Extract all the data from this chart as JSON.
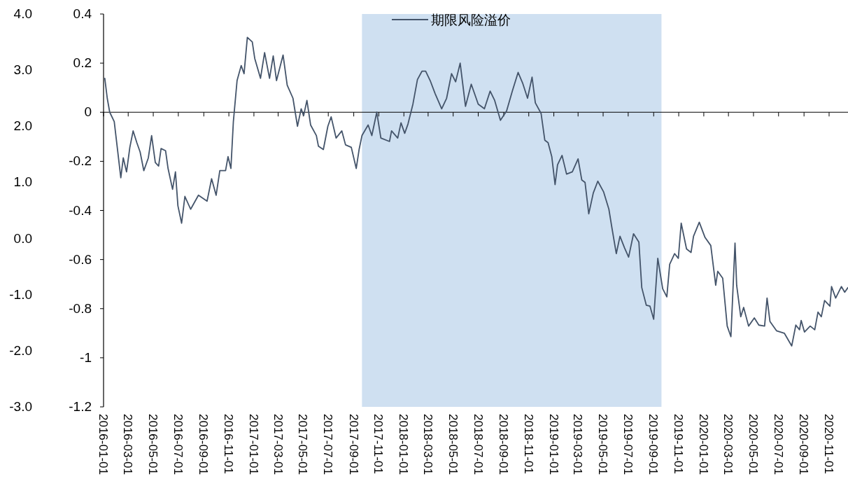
{
  "chart_data": {
    "type": "line",
    "legend": "top",
    "xlim": [
      "2016-01-01",
      "2020-12-17"
    ],
    "xticks": [
      "2016-01-01",
      "2016-03-01",
      "2016-05-01",
      "2016-07-01",
      "2016-09-01",
      "2016-11-01",
      "2017-01-01",
      "2017-03-01",
      "2017-05-01",
      "2017-07-01",
      "2017-09-01",
      "2017-11-01",
      "2018-01-01",
      "2018-03-01",
      "2018-05-01",
      "2018-07-01",
      "2018-09-01",
      "2018-11-01",
      "2019-01-01",
      "2019-03-01",
      "2019-05-01",
      "2019-07-01",
      "2019-09-01",
      "2019-11-01",
      "2020-01-01",
      "2020-03-01",
      "2020-05-01",
      "2020-07-01",
      "2020-09-01",
      "2020-11-01"
    ],
    "ylim": [
      -1.2,
      0.4
    ],
    "yticks": [
      {
        "value": -1.2,
        "label": "-1.2"
      },
      -1,
      {
        "value": -0.8,
        "label": "-0.8"
      },
      {
        "value": -0.6,
        "label": "-0.6"
      },
      {
        "value": -0.4,
        "label": "-0.4"
      },
      {
        "value": -0.2,
        "label": "-0.2"
      },
      0,
      0.2,
      0.4
    ],
    "y2lim": [
      -3,
      4
    ],
    "y2ticks": [
      {
        "value": -3,
        "label": "-3.0"
      },
      {
        "value": -2,
        "label": "-2.0"
      },
      {
        "value": -1,
        "label": "-1.0"
      },
      {
        "value": 0,
        "label": "0.0"
      },
      {
        "value": 1,
        "label": "1.0"
      },
      {
        "value": 2,
        "label": "2.0"
      },
      {
        "value": 3,
        "label": "3.0"
      },
      {
        "value": 4,
        "label": "4.0"
      }
    ],
    "bands": [
      {
        "axis": "x",
        "from": "2017-09-21",
        "to": "2019-09-20",
        "color": "#cfe0f1"
      }
    ],
    "series": [
      {
        "name": "期限风险溢价",
        "color": "#44546a",
        "x": [
          "2016-01-04",
          "2016-01-10",
          "2016-01-16",
          "2016-01-27",
          "2016-02-04",
          "2016-02-12",
          "2016-02-18",
          "2016-02-26",
          "2016-03-05",
          "2016-03-13",
          "2016-03-22",
          "2016-03-30",
          "2016-04-08",
          "2016-04-19",
          "2016-04-27",
          "2016-05-06",
          "2016-05-14",
          "2016-05-20",
          "2016-05-31",
          "2016-06-06",
          "2016-06-17",
          "2016-06-24",
          "2016-06-30",
          "2016-07-09",
          "2016-07-17",
          "2016-07-31",
          "2016-08-19",
          "2016-09-09",
          "2016-09-20",
          "2016-10-01",
          "2016-10-10",
          "2016-10-24",
          "2016-10-30",
          "2016-11-06",
          "2016-11-12",
          "2016-11-21",
          "2016-12-01",
          "2016-12-08",
          "2016-12-16",
          "2016-12-28",
          "2017-01-03",
          "2017-01-17",
          "2017-01-27",
          "2017-02-08",
          "2017-02-17",
          "2017-02-25",
          "2017-03-13",
          "2017-03-23",
          "2017-04-06",
          "2017-04-17",
          "2017-04-26",
          "2017-05-02",
          "2017-05-10",
          "2017-05-19",
          "2017-06-02",
          "2017-06-07",
          "2017-06-19",
          "2017-06-30",
          "2017-07-08",
          "2017-07-20",
          "2017-08-03",
          "2017-08-12",
          "2017-08-26",
          "2017-09-07",
          "2017-09-14",
          "2017-09-21",
          "2017-10-06",
          "2017-10-15",
          "2017-10-27",
          "2017-11-06",
          "2017-11-27",
          "2017-12-02",
          "2017-12-17",
          "2017-12-25",
          "2018-01-03",
          "2018-01-11",
          "2018-01-23",
          "2018-02-03",
          "2018-02-14",
          "2018-02-23",
          "2018-03-06",
          "2018-03-18",
          "2018-04-03",
          "2018-04-15",
          "2018-04-27",
          "2018-05-07",
          "2018-05-18",
          "2018-05-31",
          "2018-06-14",
          "2018-07-01",
          "2018-07-16",
          "2018-07-30",
          "2018-08-10",
          "2018-08-24",
          "2018-09-08",
          "2018-09-22",
          "2018-10-06",
          "2018-10-17",
          "2018-10-29",
          "2018-11-09",
          "2018-11-17",
          "2018-12-01",
          "2018-12-10",
          "2018-12-18",
          "2018-12-27",
          "2019-01-04",
          "2019-01-10",
          "2019-01-21",
          "2019-02-01",
          "2019-02-15",
          "2019-03-01",
          "2019-03-10",
          "2019-03-18",
          "2019-03-27",
          "2019-04-07",
          "2019-04-18",
          "2019-05-02",
          "2019-05-15",
          "2019-05-22",
          "2019-06-02",
          "2019-06-11",
          "2019-06-22",
          "2019-07-02",
          "2019-07-14",
          "2019-07-27",
          "2019-08-03",
          "2019-08-14",
          "2019-08-23",
          "2019-09-01",
          "2019-09-11",
          "2019-09-23",
          "2019-10-03",
          "2019-10-10",
          "2019-10-22",
          "2019-10-31",
          "2019-11-07",
          "2019-11-20",
          "2019-12-01",
          "2019-12-07",
          "2019-12-21",
          "2020-01-04",
          "2020-01-18",
          "2020-01-30",
          "2020-02-04",
          "2020-02-16",
          "2020-02-27",
          "2020-03-07",
          "2020-03-12",
          "2020-03-17",
          "2020-03-21",
          "2020-03-31",
          "2020-04-07",
          "2020-04-19",
          "2020-05-03",
          "2020-05-14",
          "2020-05-28",
          "2020-06-03",
          "2020-06-10",
          "2020-06-26",
          "2020-07-15",
          "2020-08-02",
          "2020-08-12",
          "2020-08-21",
          "2020-08-25",
          "2020-09-02",
          "2020-09-16",
          "2020-09-27",
          "2020-10-05",
          "2020-10-13",
          "2020-10-21",
          "2020-11-03",
          "2020-11-07",
          "2020-11-17",
          "2020-12-01",
          "2020-12-09",
          "2020-12-17"
        ],
        "values": [
          0.138,
          0.057,
          0,
          -0.038,
          -0.152,
          -0.267,
          -0.186,
          -0.243,
          -0.143,
          -0.076,
          -0.124,
          -0.162,
          -0.238,
          -0.186,
          -0.095,
          -0.205,
          -0.219,
          -0.148,
          -0.157,
          -0.229,
          -0.314,
          -0.243,
          -0.381,
          -0.452,
          -0.343,
          -0.395,
          -0.338,
          -0.362,
          -0.271,
          -0.338,
          -0.238,
          -0.238,
          -0.181,
          -0.229,
          -0.038,
          0.129,
          0.19,
          0.157,
          0.305,
          0.286,
          0.219,
          0.138,
          0.243,
          0.138,
          0.229,
          0.129,
          0.233,
          0.11,
          0.057,
          -0.057,
          0.014,
          -0.014,
          0.048,
          -0.052,
          -0.095,
          -0.138,
          -0.152,
          -0.057,
          -0.019,
          -0.105,
          -0.076,
          -0.133,
          -0.143,
          -0.229,
          -0.152,
          -0.095,
          -0.052,
          -0.095,
          0,
          -0.105,
          -0.119,
          -0.076,
          -0.105,
          -0.043,
          -0.086,
          -0.048,
          0.033,
          0.133,
          0.167,
          0.167,
          0.129,
          0.076,
          0.014,
          0.057,
          0.157,
          0.124,
          0.2,
          0.024,
          0.114,
          0.033,
          0.014,
          0.086,
          0.048,
          -0.033,
          0.005,
          0.086,
          0.162,
          0.119,
          0.057,
          0.143,
          0.038,
          -0.005,
          -0.114,
          -0.124,
          -0.181,
          -0.295,
          -0.214,
          -0.176,
          -0.252,
          -0.243,
          -0.19,
          -0.276,
          -0.286,
          -0.414,
          -0.329,
          -0.281,
          -0.324,
          -0.395,
          -0.467,
          -0.576,
          -0.505,
          -0.552,
          -0.59,
          -0.495,
          -0.529,
          -0.714,
          -0.786,
          -0.79,
          -0.843,
          -0.595,
          -0.719,
          -0.752,
          -0.619,
          -0.576,
          -0.595,
          -0.452,
          -0.557,
          -0.571,
          -0.505,
          -0.448,
          -0.51,
          -0.543,
          -0.705,
          -0.648,
          -0.676,
          -0.871,
          -0.914,
          -0.724,
          -0.533,
          -0.705,
          -0.833,
          -0.795,
          -0.871,
          -0.838,
          -0.867,
          -0.871,
          -0.757,
          -0.852,
          -0.89,
          -0.9,
          -0.952,
          -0.867,
          -0.886,
          -0.848,
          -0.895,
          -0.871,
          -0.886,
          -0.814,
          -0.833,
          -0.767,
          -0.79,
          -0.71,
          -0.757,
          -0.71,
          -0.733,
          -0.714
        ]
      }
    ]
  }
}
